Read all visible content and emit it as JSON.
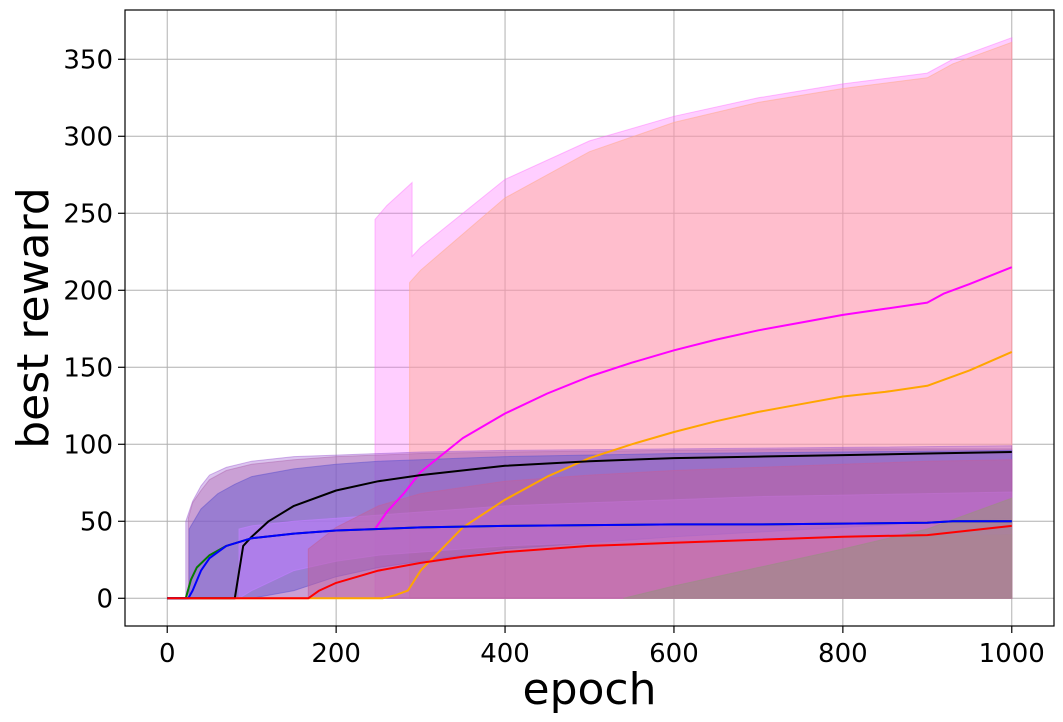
{
  "chart_data": {
    "type": "line",
    "title": "",
    "xlabel": "epoch",
    "ylabel": "best reward",
    "xlim": [
      -50,
      1050
    ],
    "ylim": [
      -18,
      382
    ],
    "x_ticks": [
      0,
      200,
      400,
      600,
      800,
      1000
    ],
    "y_ticks": [
      0,
      50,
      100,
      150,
      200,
      250,
      300,
      350
    ],
    "grid": true,
    "legend": "none",
    "bands": [
      {
        "color": "#ff66ff",
        "opacity": 0.32,
        "x": [
          246,
          246,
          260,
          280,
          290,
          290,
          300,
          400,
          500,
          600,
          700,
          800,
          900,
          930,
          1000
        ],
        "upper": [
          0,
          246,
          255,
          265,
          270,
          222,
          228,
          272,
          297,
          313,
          325,
          334,
          341,
          350,
          364
        ],
        "lower": [
          0,
          0,
          0,
          0,
          0,
          0,
          0,
          0,
          0,
          0,
          0,
          0,
          0,
          0,
          0
        ]
      },
      {
        "color": "#ffaa88",
        "opacity": 0.42,
        "x": [
          287,
          287,
          300,
          400,
          500,
          600,
          700,
          800,
          900,
          930,
          1000
        ],
        "upper": [
          0,
          205,
          213,
          260,
          290,
          309,
          322,
          331,
          338,
          347,
          361
        ],
        "lower": [
          0,
          0,
          0,
          0,
          0,
          0,
          0,
          0,
          0,
          0,
          0
        ]
      },
      {
        "color": "#9b59d0",
        "opacity": 0.35,
        "x": [
          22,
          22,
          30,
          40,
          50,
          70,
          100,
          150,
          200,
          300,
          400,
          600,
          800,
          1000
        ],
        "upper": [
          0,
          50,
          63,
          73,
          80,
          85,
          89,
          92,
          93,
          95,
          96,
          97,
          98,
          99
        ],
        "lower": [
          0,
          0,
          0,
          0,
          0,
          0,
          0,
          0,
          0,
          0,
          0,
          0,
          0,
          0
        ]
      },
      {
        "color": "#b06ab0",
        "opacity": 0.4,
        "x": [
          25,
          25,
          30,
          40,
          50,
          70,
          100,
          150,
          200,
          300,
          400,
          600,
          800,
          1000
        ],
        "upper": [
          0,
          52,
          62,
          70,
          77,
          83,
          87,
          90,
          92,
          94,
          95,
          96,
          97,
          97
        ],
        "lower": [
          0,
          0,
          0,
          0,
          0,
          0,
          0,
          0,
          0,
          0,
          0,
          0,
          0,
          0
        ]
      },
      {
        "color": "#6a5acd",
        "opacity": 0.5,
        "x": [
          26,
          26,
          40,
          60,
          80,
          100,
          150,
          200,
          250,
          300,
          350,
          400,
          600,
          800,
          1000
        ],
        "upper": [
          0,
          45,
          58,
          68,
          74,
          79,
          84,
          87,
          89,
          90,
          91,
          92,
          94,
          95,
          96
        ],
        "lower": [
          0,
          0,
          0,
          0,
          0,
          0,
          5,
          14,
          20,
          24,
          28,
          32,
          40,
          46,
          52
        ]
      },
      {
        "color": "#c080ff",
        "opacity": 0.55,
        "x": [
          85,
          100,
          150,
          200,
          250,
          300,
          350,
          400,
          500,
          600,
          700,
          800,
          900,
          1000
        ],
        "upper": [
          45,
          47,
          50,
          52,
          54,
          56,
          58,
          60,
          62,
          64,
          66,
          67,
          68,
          69
        ],
        "lower": [
          0,
          5,
          18,
          24,
          28,
          30,
          32,
          34,
          36,
          38,
          39,
          40,
          41,
          42
        ]
      },
      {
        "color": "#c060a0",
        "opacity": 0.5,
        "x": [
          167,
          200,
          250,
          300,
          350,
          400,
          500,
          600,
          700,
          800,
          900,
          1000
        ],
        "upper": [
          32,
          46,
          60,
          68,
          72,
          76,
          80,
          83,
          85,
          87,
          89,
          90
        ],
        "lower": [
          0,
          0,
          0,
          0,
          0,
          0,
          0,
          0,
          0,
          0,
          0,
          0
        ]
      },
      {
        "color": "#a08a8a",
        "opacity": 0.7,
        "x": [
          540,
          600,
          700,
          800,
          900,
          1000
        ],
        "upper": [
          0,
          8,
          20,
          32,
          45,
          65
        ],
        "lower": [
          0,
          0,
          0,
          0,
          0,
          0
        ]
      }
    ],
    "series": [
      {
        "color": "#ff00ff",
        "x": [
          0,
          22,
          28,
          35,
          50,
          70,
          100,
          150,
          200,
          246,
          260,
          280,
          300,
          350,
          400,
          450,
          500,
          550,
          600,
          650,
          700,
          750,
          800,
          850,
          900,
          920,
          950,
          1000
        ],
        "values": [
          0,
          0,
          12,
          20,
          28,
          34,
          39,
          42,
          44,
          45,
          56,
          68,
          82,
          104,
          120,
          133,
          144,
          153,
          161,
          168,
          174,
          179,
          184,
          188,
          192,
          198,
          204,
          215
        ]
      },
      {
        "color": "#ffa500",
        "x": [
          0,
          255,
          270,
          285,
          300,
          350,
          400,
          450,
          500,
          550,
          600,
          650,
          700,
          750,
          800,
          850,
          900,
          950,
          1000
        ],
        "values": [
          0,
          0,
          2,
          5,
          18,
          46,
          64,
          79,
          91,
          100,
          108,
          115,
          121,
          126,
          131,
          134,
          138,
          148,
          160
        ]
      },
      {
        "color": "#000000",
        "x": [
          0,
          80,
          90,
          100,
          120,
          150,
          200,
          250,
          300,
          400,
          500,
          600,
          700,
          800,
          900,
          1000
        ],
        "values": [
          0,
          0,
          34,
          40,
          50,
          60,
          70,
          76,
          80,
          86,
          89,
          91,
          92,
          93,
          94,
          95
        ]
      },
      {
        "color": "#008000",
        "x": [
          0,
          22,
          28,
          35,
          50,
          70,
          100,
          150,
          200,
          300,
          400,
          500,
          600,
          700,
          800,
          900,
          930,
          1000
        ],
        "values": [
          0,
          0,
          12,
          20,
          28,
          34,
          39,
          42,
          44,
          46,
          47,
          47.5,
          48,
          48,
          48.5,
          49,
          50,
          50
        ]
      },
      {
        "color": "#0000ff",
        "x": [
          0,
          25,
          30,
          40,
          50,
          70,
          100,
          150,
          200,
          300,
          400,
          500,
          600,
          700,
          800,
          900,
          930,
          1000
        ],
        "values": [
          0,
          0,
          5,
          18,
          26,
          34,
          39,
          42,
          44,
          46,
          47,
          47.5,
          48,
          48,
          48.5,
          49,
          50,
          50
        ]
      },
      {
        "color": "#ff0000",
        "x": [
          0,
          167,
          180,
          200,
          250,
          300,
          350,
          400,
          500,
          600,
          700,
          800,
          900,
          1000
        ],
        "values": [
          0,
          0,
          5,
          10,
          18,
          23,
          27,
          30,
          34,
          36,
          38,
          40,
          41,
          47
        ]
      }
    ]
  }
}
